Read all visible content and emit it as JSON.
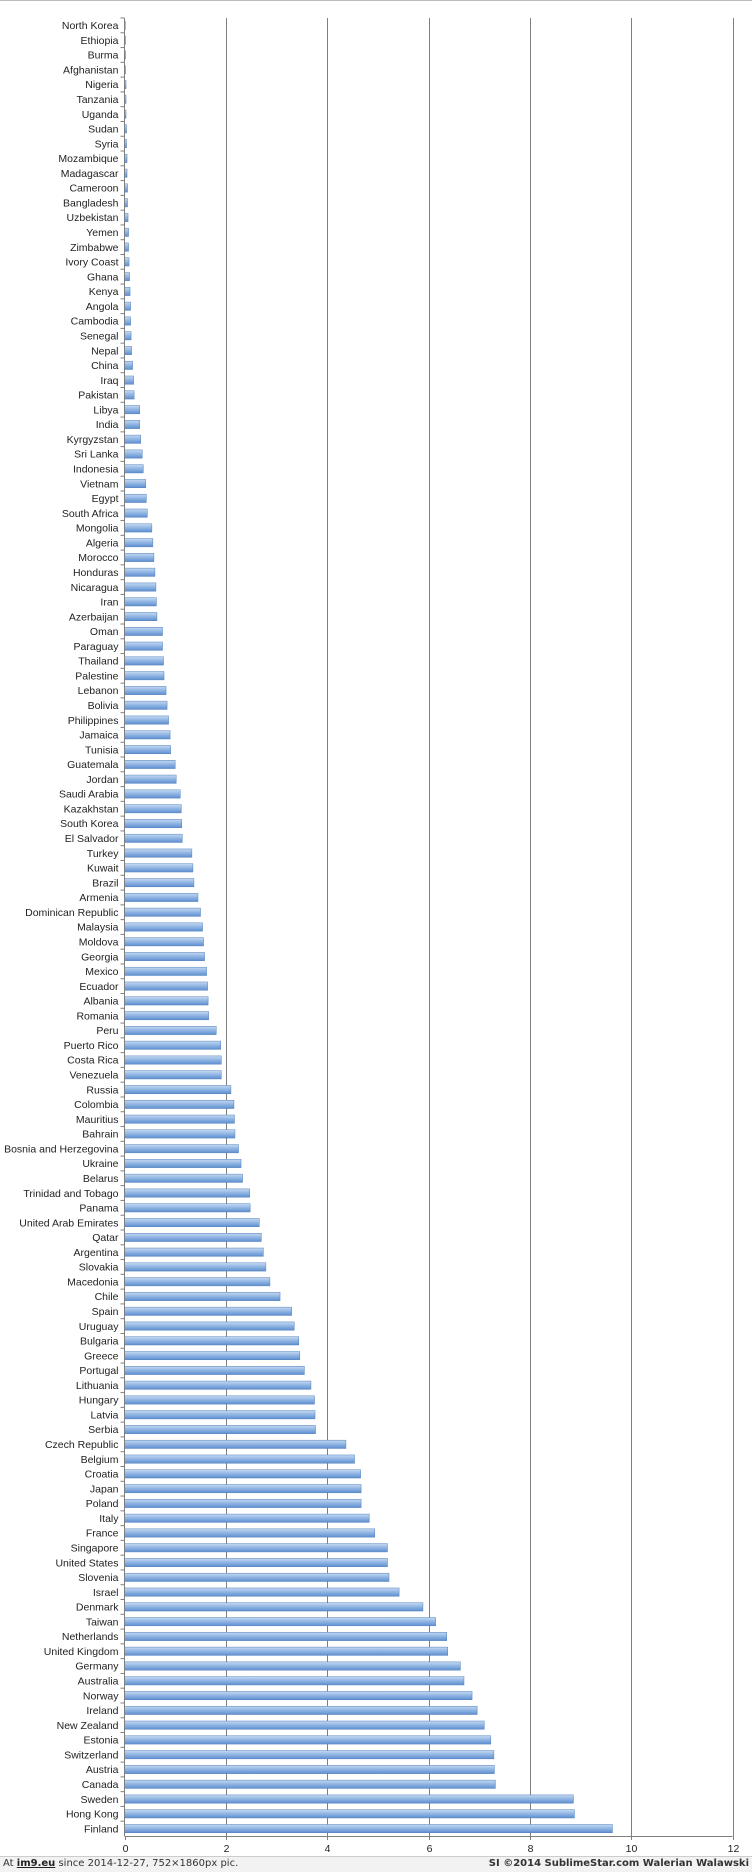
{
  "chart_data": {
    "type": "bar",
    "orientation": "horizontal",
    "xlim": [
      0,
      12
    ],
    "x_ticks": [
      "0",
      "2",
      "4",
      "6",
      "8",
      "10",
      "12"
    ],
    "grid": true,
    "legend": "none",
    "bar_color": "#8eb4e3",
    "bar_edge_color": "#4f81bd",
    "categories": [
      "North Korea",
      "Ethiopia",
      "Burma",
      "Afghanistan",
      "Nigeria",
      "Tanzania",
      "Uganda",
      "Sudan",
      "Syria",
      "Mozambique",
      "Madagascar",
      "Cameroon",
      "Bangladesh",
      "Uzbekistan",
      "Yemen",
      "Zimbabwe",
      "Ivory Coast",
      "Ghana",
      "Kenya",
      "Angola",
      "Cambodia",
      "Senegal",
      "Nepal",
      "China",
      "Iraq",
      "Pakistan",
      "Libya",
      "India",
      "Kyrgyzstan",
      "Sri Lanka",
      "Indonesia",
      "Vietnam",
      "Egypt",
      "South Africa",
      "Mongolia",
      "Algeria",
      "Morocco",
      "Honduras",
      "Nicaragua",
      "Iran",
      "Azerbaijan",
      "Oman",
      "Paraguay",
      "Thailand",
      "Palestine",
      "Lebanon",
      "Bolivia",
      "Philippines",
      "Jamaica",
      "Tunisia",
      "Guatemala",
      "Jordan",
      "Saudi Arabia",
      "Kazakhstan",
      "South Korea",
      "El Salvador",
      "Turkey",
      "Kuwait",
      "Brazil",
      "Armenia",
      "Dominican Republic",
      "Malaysia",
      "Moldova",
      "Georgia",
      "Mexico",
      "Ecuador",
      "Albania",
      "Romania",
      "Peru",
      "Puerto Rico",
      "Costa Rica",
      "Venezuela",
      "Russia",
      "Colombia",
      "Mauritius",
      "Bahrain",
      "Bosnia and Herzegovina",
      "Ukraine",
      "Belarus",
      "Trinidad and Tobago",
      "Panama",
      "United Arab Emirates",
      "Qatar",
      "Argentina",
      "Slovakia",
      "Macedonia",
      "Chile",
      "Spain",
      "Uruguay",
      "Bulgaria",
      "Greece",
      "Portugal",
      "Lithuania",
      "Hungary",
      "Latvia",
      "Serbia",
      "Czech Republic",
      "Belgium",
      "Croatia",
      "Japan",
      "Poland",
      "Italy",
      "France",
      "Singapore",
      "United States",
      "Slovenia",
      "Israel",
      "Denmark",
      "Taiwan",
      "Netherlands",
      "United Kingdom",
      "Germany",
      "Australia",
      "Norway",
      "Ireland",
      "New Zealand",
      "Estonia",
      "Switzerland",
      "Austria",
      "Canada",
      "Sweden",
      "Hong Kong",
      "Finland"
    ],
    "values": [
      0.01,
      0.02,
      0.02,
      0.02,
      0.03,
      0.03,
      0.03,
      0.04,
      0.04,
      0.05,
      0.05,
      0.06,
      0.06,
      0.07,
      0.08,
      0.08,
      0.09,
      0.1,
      0.11,
      0.12,
      0.12,
      0.13,
      0.14,
      0.16,
      0.18,
      0.19,
      0.3,
      0.3,
      0.32,
      0.35,
      0.37,
      0.42,
      0.43,
      0.45,
      0.54,
      0.56,
      0.58,
      0.6,
      0.62,
      0.63,
      0.64,
      0.75,
      0.75,
      0.77,
      0.78,
      0.82,
      0.84,
      0.87,
      0.9,
      0.91,
      1.0,
      1.02,
      1.1,
      1.12,
      1.13,
      1.14,
      1.33,
      1.35,
      1.37,
      1.45,
      1.5,
      1.54,
      1.56,
      1.58,
      1.62,
      1.64,
      1.65,
      1.66,
      1.81,
      1.9,
      1.91,
      1.91,
      2.1,
      2.16,
      2.17,
      2.18,
      2.25,
      2.3,
      2.33,
      2.47,
      2.48,
      2.66,
      2.7,
      2.74,
      2.79,
      2.87,
      3.07,
      3.3,
      3.35,
      3.44,
      3.46,
      3.55,
      3.68,
      3.75,
      3.76,
      3.77,
      4.37,
      4.54,
      4.66,
      4.67,
      4.67,
      4.83,
      4.94,
      5.19,
      5.19,
      5.22,
      5.42,
      5.89,
      6.14,
      6.36,
      6.38,
      6.63,
      6.7,
      6.86,
      6.96,
      7.1,
      7.23,
      7.29,
      7.3,
      7.32,
      8.86,
      8.88,
      9.63
    ]
  },
  "footer": {
    "left_prefix": "At ",
    "left_site": "im9.eu",
    "left_suffix": " since 2014-12-27, 752×1860px pic.",
    "right_text": "SI ©2014 SublimeStar.com Walerian Walawski"
  }
}
